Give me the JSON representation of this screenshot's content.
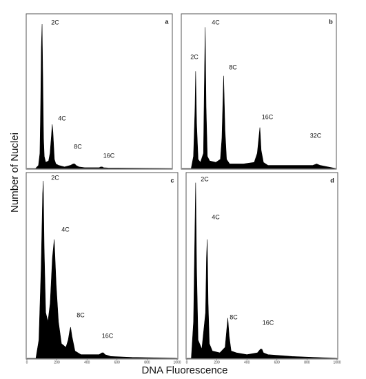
{
  "ylabel": "Number of Nuclei",
  "xlabel": "DNA Fluorescence",
  "chart_data": [
    {
      "type": "area",
      "title": "a",
      "color": "#000000",
      "annotations": [
        "2C",
        "4C",
        "8C",
        "16C"
      ],
      "xlim": [
        0,
        1000
      ],
      "ylim": [
        0,
        100
      ],
      "x": [
        0,
        60,
        80,
        90,
        95,
        100,
        105,
        110,
        115,
        120,
        130,
        150,
        160,
        170,
        175,
        180,
        185,
        190,
        200,
        220,
        260,
        300,
        320,
        330,
        340,
        360,
        400,
        500,
        510,
        520,
        530,
        560,
        700,
        1000
      ],
      "values": [
        0,
        0,
        2,
        10,
        40,
        80,
        95,
        60,
        20,
        8,
        4,
        5,
        10,
        22,
        29,
        24,
        15,
        6,
        3,
        2,
        1,
        2,
        3,
        3,
        2,
        1,
        0.5,
        0.5,
        1,
        1,
        0.5,
        0.3,
        0.2,
        0
      ]
    },
    {
      "type": "area",
      "title": "b",
      "color": "#000000",
      "annotations": [
        "2C",
        "4C",
        "8C",
        "16C",
        "32C"
      ],
      "xlim": [
        0,
        1000
      ],
      "ylim": [
        0,
        100
      ],
      "x": [
        0,
        60,
        75,
        85,
        89,
        95,
        105,
        120,
        140,
        145,
        151,
        157,
        165,
        180,
        220,
        250,
        260,
        271,
        280,
        290,
        310,
        400,
        470,
        490,
        500,
        507,
        515,
        530,
        560,
        700,
        850,
        876,
        900,
        950,
        1000
      ],
      "values": [
        0,
        0,
        8,
        40,
        64,
        30,
        6,
        4,
        10,
        50,
        93,
        40,
        8,
        5,
        4,
        6,
        20,
        61,
        25,
        6,
        3,
        3,
        4,
        10,
        20,
        27,
        12,
        4,
        2,
        2,
        2,
        3,
        2,
        1,
        0
      ]
    },
    {
      "type": "area",
      "title": "c",
      "color": "#000000",
      "annotations": [
        "2C",
        "4C",
        "8C",
        "16C"
      ],
      "xlim": [
        0,
        1000
      ],
      "ylim": [
        0,
        100
      ],
      "xticks": [
        0,
        200,
        400,
        600,
        800,
        1000
      ],
      "x": [
        0,
        60,
        80,
        95,
        105,
        109,
        115,
        125,
        140,
        155,
        170,
        182,
        195,
        210,
        230,
        260,
        275,
        285,
        291,
        300,
        320,
        360,
        480,
        500,
        509,
        520,
        560,
        700,
        1000
      ],
      "values": [
        0,
        0,
        10,
        50,
        90,
        97,
        60,
        25,
        20,
        30,
        55,
        65,
        40,
        20,
        8,
        6,
        10,
        15,
        17,
        12,
        4,
        2,
        2,
        3,
        3,
        2,
        1,
        0.5,
        0
      ]
    },
    {
      "type": "area",
      "title": "d",
      "color": "#000000",
      "annotations": [
        "2C",
        "4C",
        "8C",
        "16C"
      ],
      "xlim": [
        0,
        1000
      ],
      "ylim": [
        0,
        100
      ],
      "xticks": [
        0,
        200,
        400,
        600,
        800,
        1000
      ],
      "x": [
        0,
        30,
        45,
        55,
        59,
        65,
        75,
        100,
        125,
        131,
        136,
        142,
        150,
        170,
        220,
        255,
        265,
        273,
        282,
        295,
        330,
        400,
        470,
        490,
        500,
        510,
        540,
        700,
        1000
      ],
      "values": [
        0,
        0,
        20,
        75,
        96,
        50,
        10,
        5,
        25,
        55,
        65,
        30,
        8,
        4,
        3,
        6,
        15,
        22,
        12,
        4,
        3,
        2,
        3,
        5,
        5,
        3,
        2,
        1,
        0
      ]
    }
  ]
}
